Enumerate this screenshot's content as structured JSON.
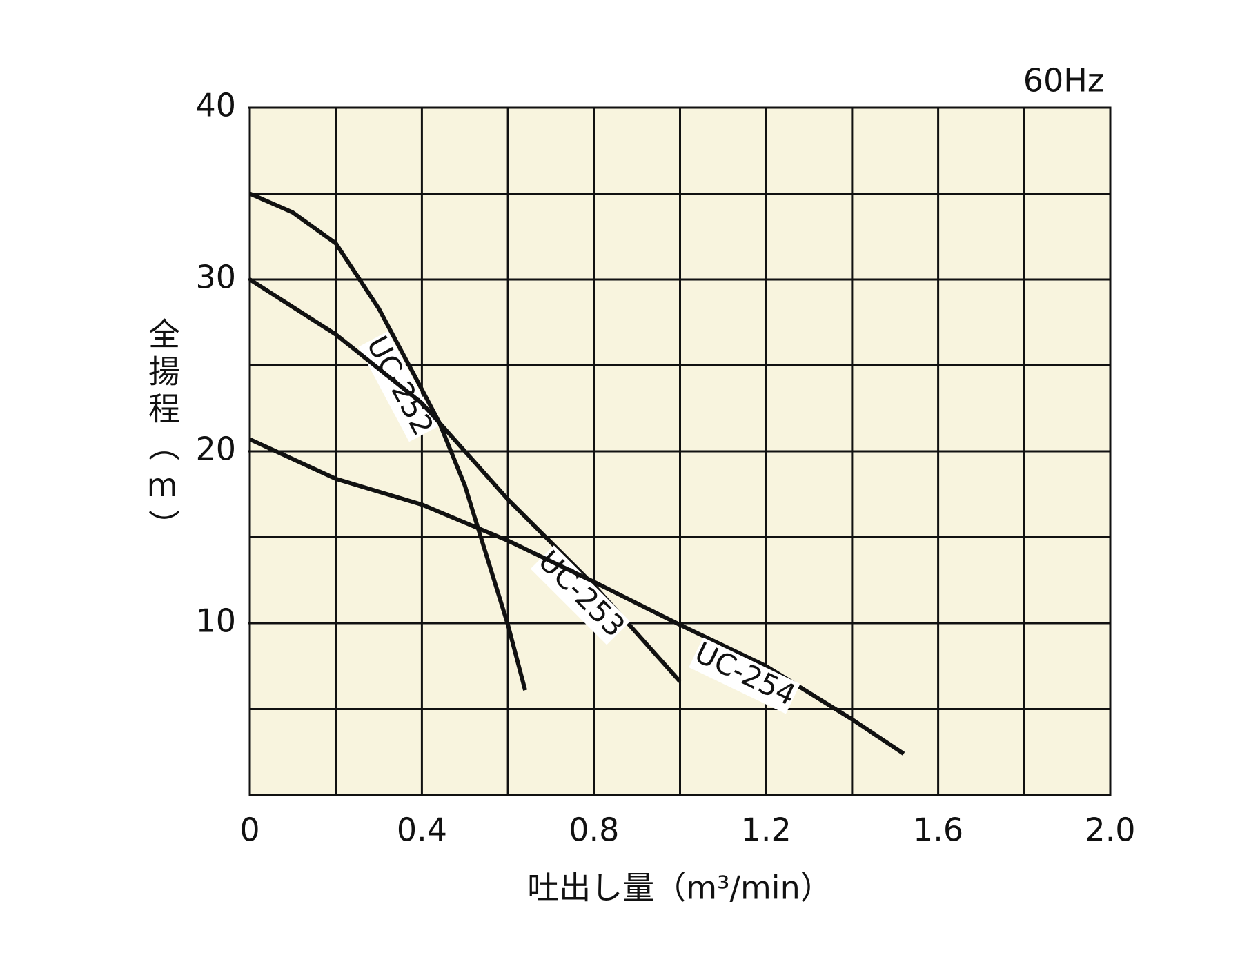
{
  "chart_data": {
    "type": "line",
    "title": "60Hz",
    "x_label": "吐出し量（m³/min）",
    "y_label": "全揚程（m）",
    "xlim": [
      0,
      2
    ],
    "ylim": [
      0,
      40
    ],
    "xticks": [
      0,
      0.4,
      0.8,
      1.2,
      1.6,
      {
        "value": 2,
        "label": "2.0"
      }
    ],
    "yticks": [
      10,
      20,
      30,
      40
    ],
    "xgrid": [
      0,
      0.2,
      0.4,
      0.6,
      0.8,
      1,
      1.2,
      1.4,
      1.6,
      1.8,
      2
    ],
    "ygrid": [
      0,
      5,
      10,
      15,
      20,
      25,
      30,
      35,
      40
    ],
    "grid": true,
    "background": "#f8f4de",
    "series": [
      {
        "name": "UC-252",
        "color": "#111111",
        "x": [
          0,
          0.1,
          0.2,
          0.3,
          0.4,
          0.44,
          0.5,
          0.6,
          0.64
        ],
        "values": [
          35,
          33.9,
          32.1,
          28.3,
          23.6,
          21.7,
          18,
          9.9,
          6.1
        ]
      },
      {
        "name": "UC-253",
        "color": "#111111",
        "x": [
          0,
          0.2,
          0.4,
          0.6,
          0.8,
          1
        ],
        "values": [
          30,
          26.8,
          22.8,
          17.2,
          12.2,
          6.6
        ]
      },
      {
        "name": "UC-254",
        "color": "#111111",
        "x": [
          0,
          0.2,
          0.4,
          0.6,
          0.8,
          1,
          1.2,
          1.4,
          1.52
        ],
        "values": [
          20.7,
          18.4,
          16.9,
          14.8,
          12.4,
          9.9,
          7.5,
          4.4,
          2.4
        ]
      }
    ]
  }
}
